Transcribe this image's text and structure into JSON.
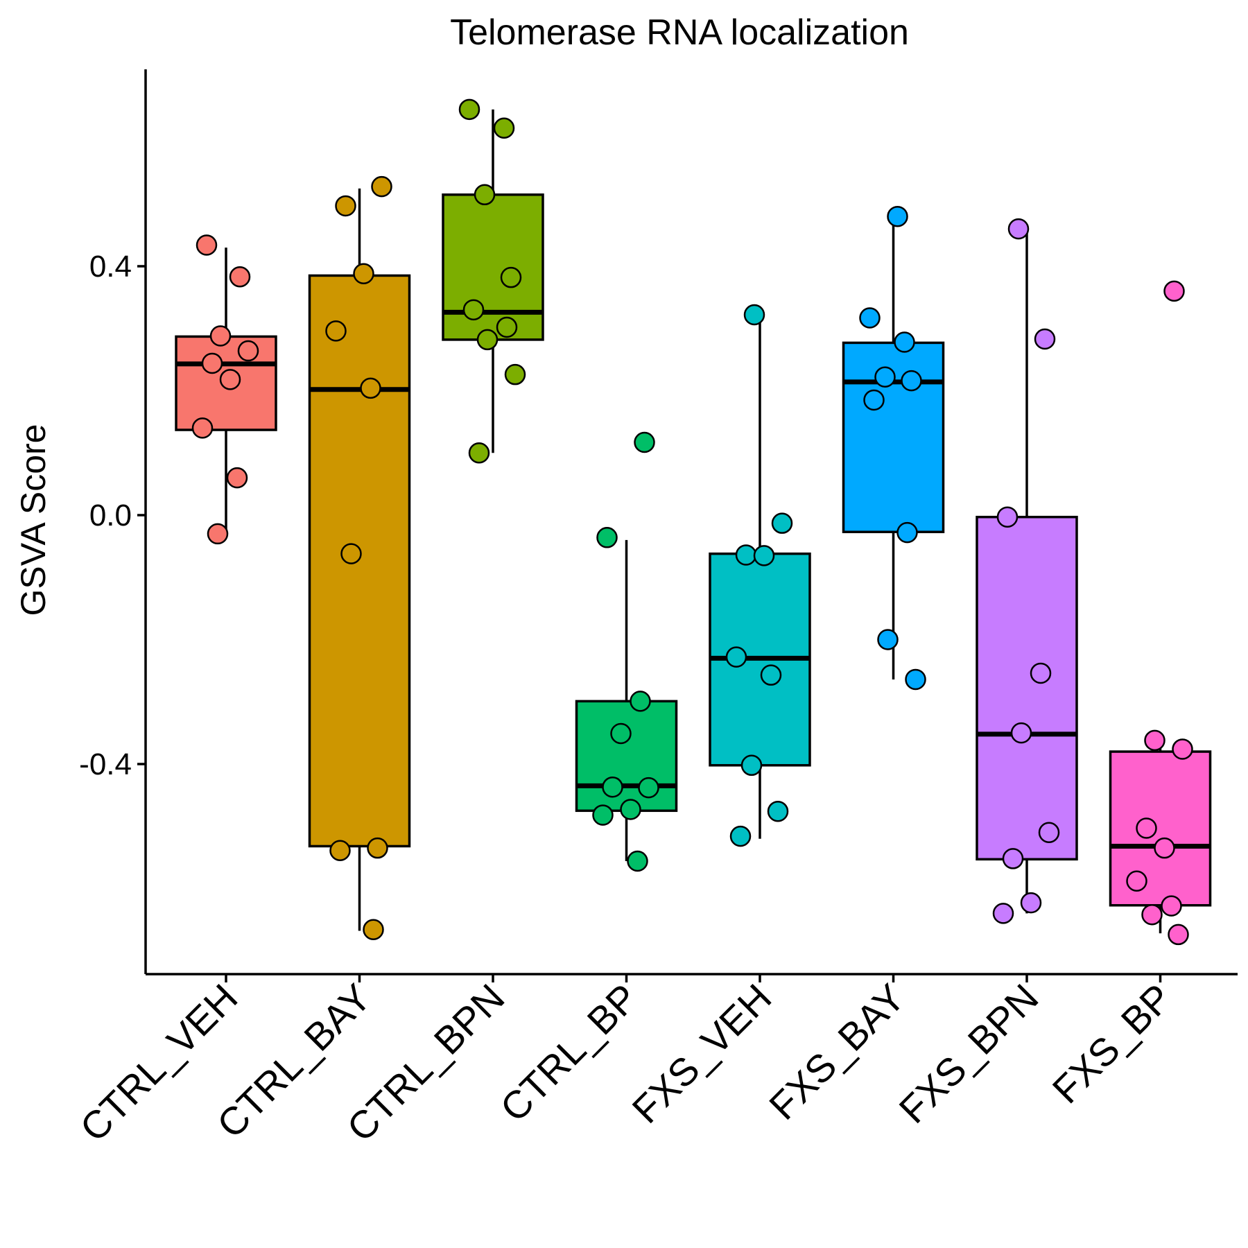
{
  "chart_data": {
    "type": "boxplot",
    "title": "Telomerase RNA localization",
    "xlabel": "",
    "ylabel": "GSVA Score",
    "ylim": [
      -0.74,
      0.72
    ],
    "yticks": [
      0.4,
      0.0,
      -0.4
    ],
    "ytick_labels": [
      "0.4",
      "0.0",
      "-0.4"
    ],
    "grid": false,
    "legend": "none",
    "categories": [
      "CTRL_VEH",
      "CTRL_BAY",
      "CTRL_BPN",
      "CTRL_BP",
      "FXS_VEH",
      "FXS_BAY",
      "FXS_BPN",
      "FXS_BP"
    ],
    "colors": [
      "#F8766D",
      "#CD9600",
      "#7CAE00",
      "#00BE67",
      "#00BFC4",
      "#00A9FF",
      "#C77CFF",
      "#FF61CC"
    ],
    "boxes": [
      {
        "whisker_low": -0.03,
        "q1": 0.137,
        "median": 0.243,
        "q3": 0.287,
        "whisker_high": 0.43
      },
      {
        "whisker_low": -0.668,
        "q1": -0.532,
        "median": 0.202,
        "q3": 0.385,
        "whisker_high": 0.525
      },
      {
        "whisker_low": 0.1,
        "q1": 0.282,
        "median": 0.326,
        "q3": 0.515,
        "whisker_high": 0.652
      },
      {
        "whisker_low": -0.556,
        "q1": -0.475,
        "median": -0.435,
        "q3": -0.299,
        "whisker_high": -0.04
      },
      {
        "whisker_low": -0.52,
        "q1": -0.402,
        "median": -0.23,
        "q3": -0.062,
        "whisker_high": 0.32
      },
      {
        "whisker_low": -0.264,
        "q1": -0.027,
        "median": 0.214,
        "q3": 0.277,
        "whisker_high": 0.48
      },
      {
        "whisker_low": -0.64,
        "q1": -0.553,
        "median": -0.352,
        "q3": -0.003,
        "whisker_high": 0.46
      },
      {
        "whisker_low": -0.672,
        "q1": -0.627,
        "median": -0.532,
        "q3": -0.38,
        "whisker_high": -0.36
      }
    ],
    "points": [
      {
        "category": "CTRL_VEH",
        "values": [
          0.434,
          0.383,
          0.288,
          0.264,
          0.244,
          0.218,
          0.14,
          0.06,
          -0.03
        ]
      },
      {
        "category": "CTRL_BAY",
        "values": [
          0.528,
          0.497,
          0.388,
          0.296,
          0.204,
          -0.062,
          -0.535,
          -0.539,
          -0.666
        ]
      },
      {
        "category": "CTRL_BPN",
        "values": [
          0.652,
          0.622,
          0.515,
          0.382,
          0.33,
          0.302,
          0.282,
          0.226,
          0.1
        ]
      },
      {
        "category": "CTRL_BP",
        "values": [
          0.117,
          -0.036,
          -0.299,
          -0.351,
          -0.438,
          -0.437,
          -0.473,
          -0.482,
          -0.556
        ]
      },
      {
        "category": "FXS_VEH",
        "values": [
          0.322,
          -0.013,
          -0.064,
          -0.065,
          -0.228,
          -0.257,
          -0.402,
          -0.476,
          -0.516
        ]
      },
      {
        "category": "FXS_BAY",
        "values": [
          0.48,
          0.317,
          0.278,
          0.222,
          0.216,
          0.185,
          -0.028,
          -0.2,
          -0.264
        ]
      },
      {
        "category": "FXS_BPN",
        "values": [
          0.46,
          0.283,
          -0.003,
          -0.254,
          -0.35,
          -0.51,
          -0.552,
          -0.623,
          -0.64
        ]
      },
      {
        "category": "FXS_BP",
        "values": [
          0.36,
          -0.362,
          -0.376,
          -0.503,
          -0.535,
          -0.588,
          -0.628,
          -0.642,
          -0.674
        ]
      }
    ]
  }
}
